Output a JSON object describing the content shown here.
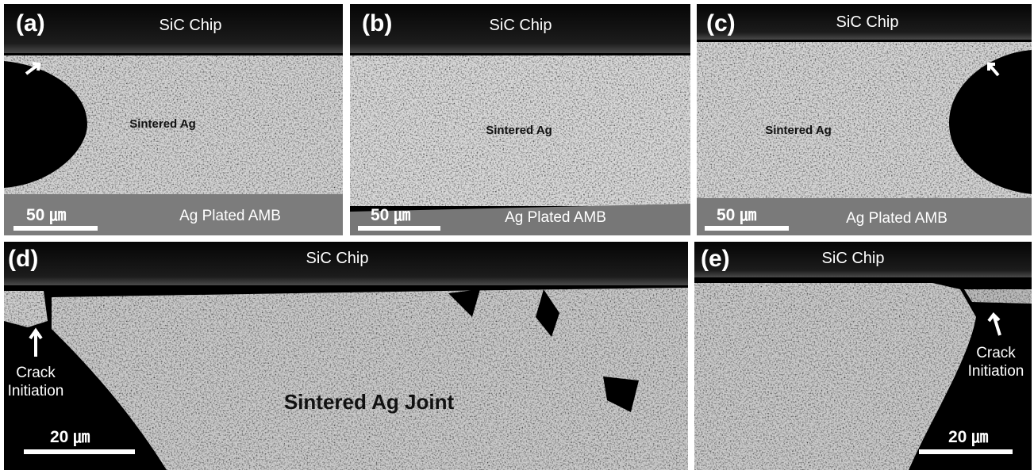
{
  "panels": [
    {
      "label": "(a)",
      "chip": "SiC Chip",
      "material": "Sintered Ag",
      "substrate": "Ag Plated AMB",
      "scale": "50 ㎛"
    },
    {
      "label": "(b)",
      "chip": "SiC Chip",
      "material": "Sintered Ag",
      "substrate": "Ag Plated AMB",
      "scale": "50 ㎛"
    },
    {
      "label": "(c)",
      "chip": "SiC Chip",
      "material": "Sintered Ag",
      "substrate": "Ag Plated AMB",
      "scale": "50 ㎛"
    },
    {
      "label": "(d)",
      "chip": "SiC Chip",
      "material": "Sintered Ag Joint",
      "annotation": "Crack Initiation",
      "scale": "20 ㎛"
    },
    {
      "label": "(e)",
      "chip": "SiC Chip",
      "annotation": "Crack Initiation",
      "scale": "20 ㎛"
    }
  ]
}
